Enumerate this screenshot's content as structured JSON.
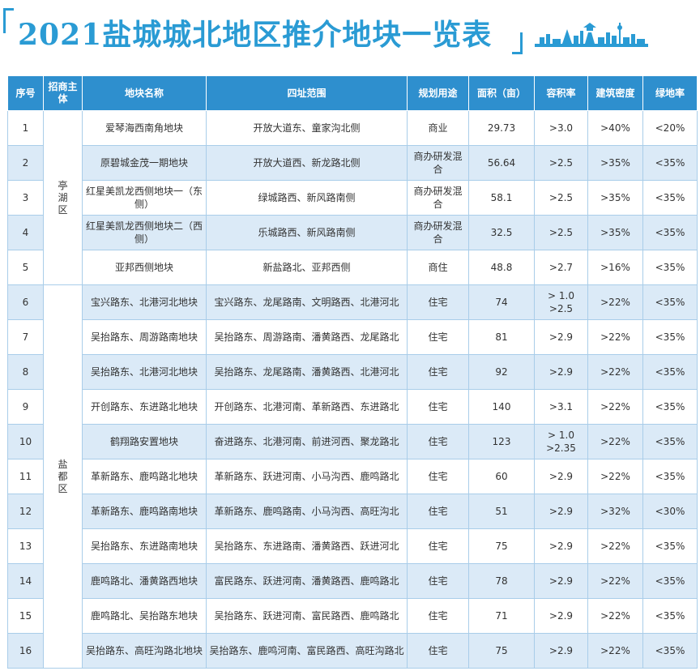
{
  "title": "2021盐城城北地区推介地块一览表",
  "colors": {
    "accent": "#2a9bd4",
    "header_bg": "#2e8fce",
    "row_alt": "#dbeaf7"
  },
  "columns": [
    "序号",
    "招商主体",
    "地块名称",
    "四址范围",
    "规划用途",
    "面积（亩）",
    "容积率",
    "建筑密度",
    "绿地率"
  ],
  "zones": [
    {
      "name": "亭湖区",
      "rows": 5
    },
    {
      "name": "盐都区",
      "rows": 11
    }
  ],
  "rows": [
    {
      "no": "1",
      "name": "爱琴海西南角地块",
      "range": "开放大道东、童家沟北侧",
      "use": "商业",
      "area": "29.73",
      "far": ">3.0",
      "density": ">40%",
      "green": "<20%"
    },
    {
      "no": "2",
      "name": "原碧城金茂一期地块",
      "range": "开放大道西、新龙路北侧",
      "use": "商办研发混合",
      "area": "56.64",
      "far": ">2.5",
      "density": ">35%",
      "green": "<35%"
    },
    {
      "no": "3",
      "name": "红星美凯龙西侧地块一（东侧）",
      "range": "绿城路西、新风路南侧",
      "use": "商办研发混合",
      "area": "58.1",
      "far": ">2.5",
      "density": ">35%",
      "green": "<35%"
    },
    {
      "no": "4",
      "name": "红星美凯龙西侧地块二（西侧）",
      "range": "乐城路西、新风路南侧",
      "use": "商办研发混合",
      "area": "32.5",
      "far": ">2.5",
      "density": ">35%",
      "green": "<35%"
    },
    {
      "no": "5",
      "name": "亚邦西侧地块",
      "range": "新盐路北、亚邦西侧",
      "use": "商住",
      "area": "48.8",
      "far": ">2.7",
      "density": ">16%",
      "green": "<35%"
    },
    {
      "no": "6",
      "name": "宝兴路东、北港河北地块",
      "range": "宝兴路东、龙尾路南、文明路西、北港河北",
      "use": "住宅",
      "area": "74",
      "far": "> 1.0 >2.5",
      "density": ">22%",
      "green": "<35%"
    },
    {
      "no": "7",
      "name": "吴抬路东、周游路南地块",
      "range": "吴抬路东、周游路南、潘黄路西、龙尾路北",
      "use": "住宅",
      "area": "81",
      "far": ">2.9",
      "density": ">22%",
      "green": "<35%"
    },
    {
      "no": "8",
      "name": "吴抬路东、北港河北地块",
      "range": "吴抬路东、龙尾路南、潘黄路西、北港河北",
      "use": "住宅",
      "area": "92",
      "far": ">2.9",
      "density": ">22%",
      "green": "<35%"
    },
    {
      "no": "9",
      "name": "开创路东、东进路北地块",
      "range": "开创路东、北港河南、革新路西、东进路北",
      "use": "住宅",
      "area": "140",
      "far": ">3.1",
      "density": ">22%",
      "green": "<35%"
    },
    {
      "no": "10",
      "name": "鹤翔路安置地块",
      "range": "奋进路东、北港河南、前进河西、聚龙路北",
      "use": "住宅",
      "area": "123",
      "far": "> 1.0 >2.35",
      "density": ">22%",
      "green": "<35%"
    },
    {
      "no": "11",
      "name": "革新路东、鹿鸣路北地块",
      "range": "革新路东、跃进河南、小马沟西、鹿鸣路北",
      "use": "住宅",
      "area": "60",
      "far": ">2.9",
      "density": ">22%",
      "green": "<35%"
    },
    {
      "no": "12",
      "name": "革新路东、鹿鸣路南地块",
      "range": "革新路东、鹿鸣路南、小马沟西、高旺沟北",
      "use": "住宅",
      "area": "51",
      "far": ">2.9",
      "density": ">32%",
      "green": "<30%"
    },
    {
      "no": "13",
      "name": "吴抬路东、东进路南地块",
      "range": "吴抬路东、东进路南、潘黄路西、跃进河北",
      "use": "住宅",
      "area": "75",
      "far": ">2.9",
      "density": ">22%",
      "green": "<35%"
    },
    {
      "no": "14",
      "name": "鹿鸣路北、潘黄路西地块",
      "range": "富民路东、跃进河南、潘黄路西、鹿鸣路北",
      "use": "住宅",
      "area": "78",
      "far": ">2.9",
      "density": ">22%",
      "green": "<35%"
    },
    {
      "no": "15",
      "name": "鹿鸣路北、吴抬路东地块",
      "range": "吴抬路东、跃进河南、富民路西、鹿鸣路北",
      "use": "住宅",
      "area": "71",
      "far": ">2.9",
      "density": ">22%",
      "green": "<35%"
    },
    {
      "no": "16",
      "name": "吴抬路东、高旺沟路北地块",
      "range": "吴抬路东、鹿鸣河南、富民路西、高旺沟路北",
      "use": "住宅",
      "area": "75",
      "far": ">2.9",
      "density": ">22%",
      "green": "<35%"
    }
  ]
}
